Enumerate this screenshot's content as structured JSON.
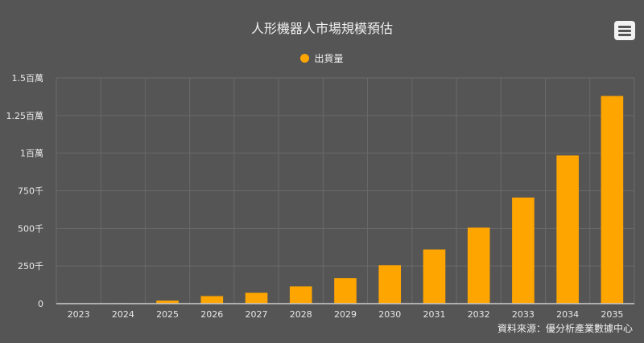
{
  "chart_data": {
    "type": "bar",
    "title": "人形機器人市場規模預估",
    "series": [
      {
        "name": "出貨量",
        "color": "#FFA500",
        "values": [
          0,
          3000,
          20000,
          50000,
          72000,
          115000,
          170000,
          255000,
          360000,
          505000,
          705000,
          985000,
          1380000
        ]
      }
    ],
    "categories": [
      "2023",
      "2024",
      "2025",
      "2026",
      "2027",
      "2028",
      "2029",
      "2030",
      "2031",
      "2032",
      "2033",
      "2034",
      "2035"
    ],
    "ylim": [
      0,
      1500000
    ],
    "y_ticks": [
      {
        "value": 0,
        "label": "0"
      },
      {
        "value": 250000,
        "label": "250千"
      },
      {
        "value": 500000,
        "label": "500千"
      },
      {
        "value": 750000,
        "label": "750千"
      },
      {
        "value": 1000000,
        "label": "1百萬"
      },
      {
        "value": 1250000,
        "label": "1.25百萬"
      },
      {
        "value": 1500000,
        "label": "1.5百萬"
      }
    ],
    "grid": true,
    "legend_position": "top-center",
    "credits": "資料來源：優分析產業數據中心"
  },
  "colors": {
    "background": "#555555",
    "bar": "#FFA500",
    "grid": "#6a6a6a",
    "axis": "#cccccc"
  },
  "menu_icon": "hamburger-menu-icon"
}
